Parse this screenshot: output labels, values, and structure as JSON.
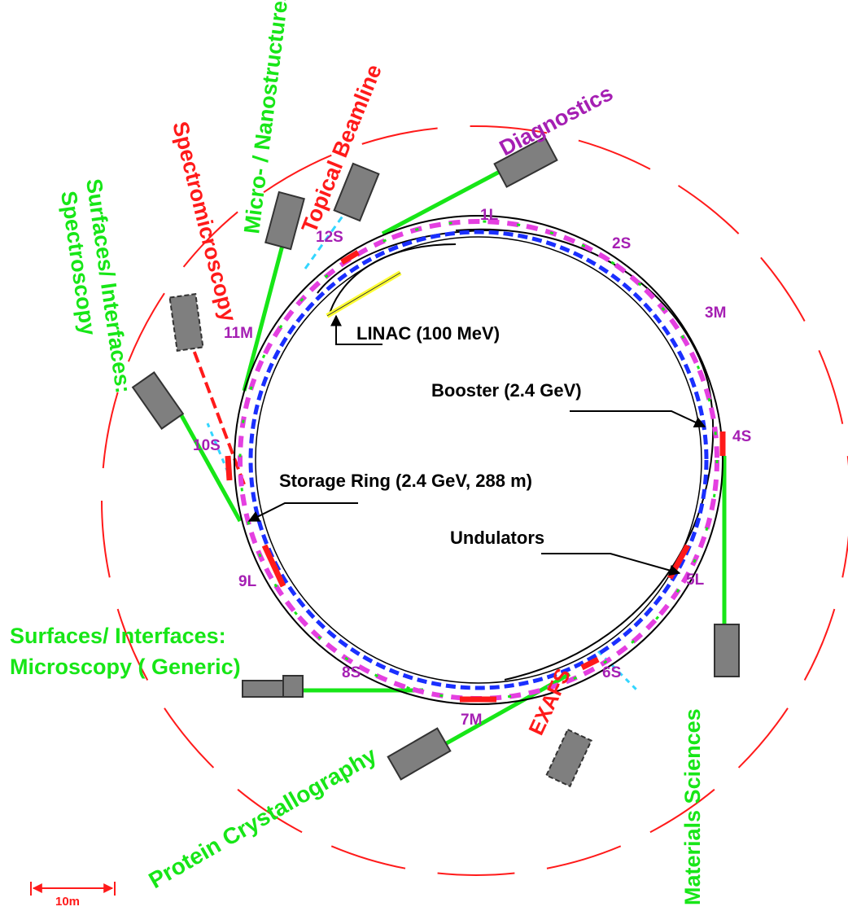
{
  "colors": {
    "green": "#17e617",
    "red": "#ff1a1a",
    "purple": "#a51fb3",
    "blue": "#1a2fff",
    "magenta": "#e43fe0",
    "gray": "#7f7f7f",
    "yellow": "#ffff33",
    "cyan": "#33d6ff"
  },
  "beamlines": {
    "surfaces_spectroscopy": "Surfaces/ Interfaces:",
    "spectroscopy": "Spectroscopy",
    "spectromicroscopy": "Spectromicroscopy",
    "micro_nano": "Micro- / Nanostructures",
    "topical": "Topical Beamline",
    "diagnostics": "Diagnostics",
    "microscopy_line1": "Surfaces/ Interfaces:",
    "microscopy_line2": "Microscopy ( Generic)",
    "protein": "Protein Crystallography",
    "exafs": "EXAFS",
    "materials": "Materials Sciences"
  },
  "sections": [
    "1L",
    "2S",
    "3M",
    "4S",
    "5L",
    "6S",
    "7M",
    "8S",
    "9L",
    "10S",
    "11M",
    "12S"
  ],
  "components": {
    "linac": "LINAC (100 MeV)",
    "booster": "Booster (2.4 GeV)",
    "storage_ring": "Storage Ring (2.4 GeV, 288 m)",
    "undulators": "Undulators"
  },
  "scale": "10m"
}
